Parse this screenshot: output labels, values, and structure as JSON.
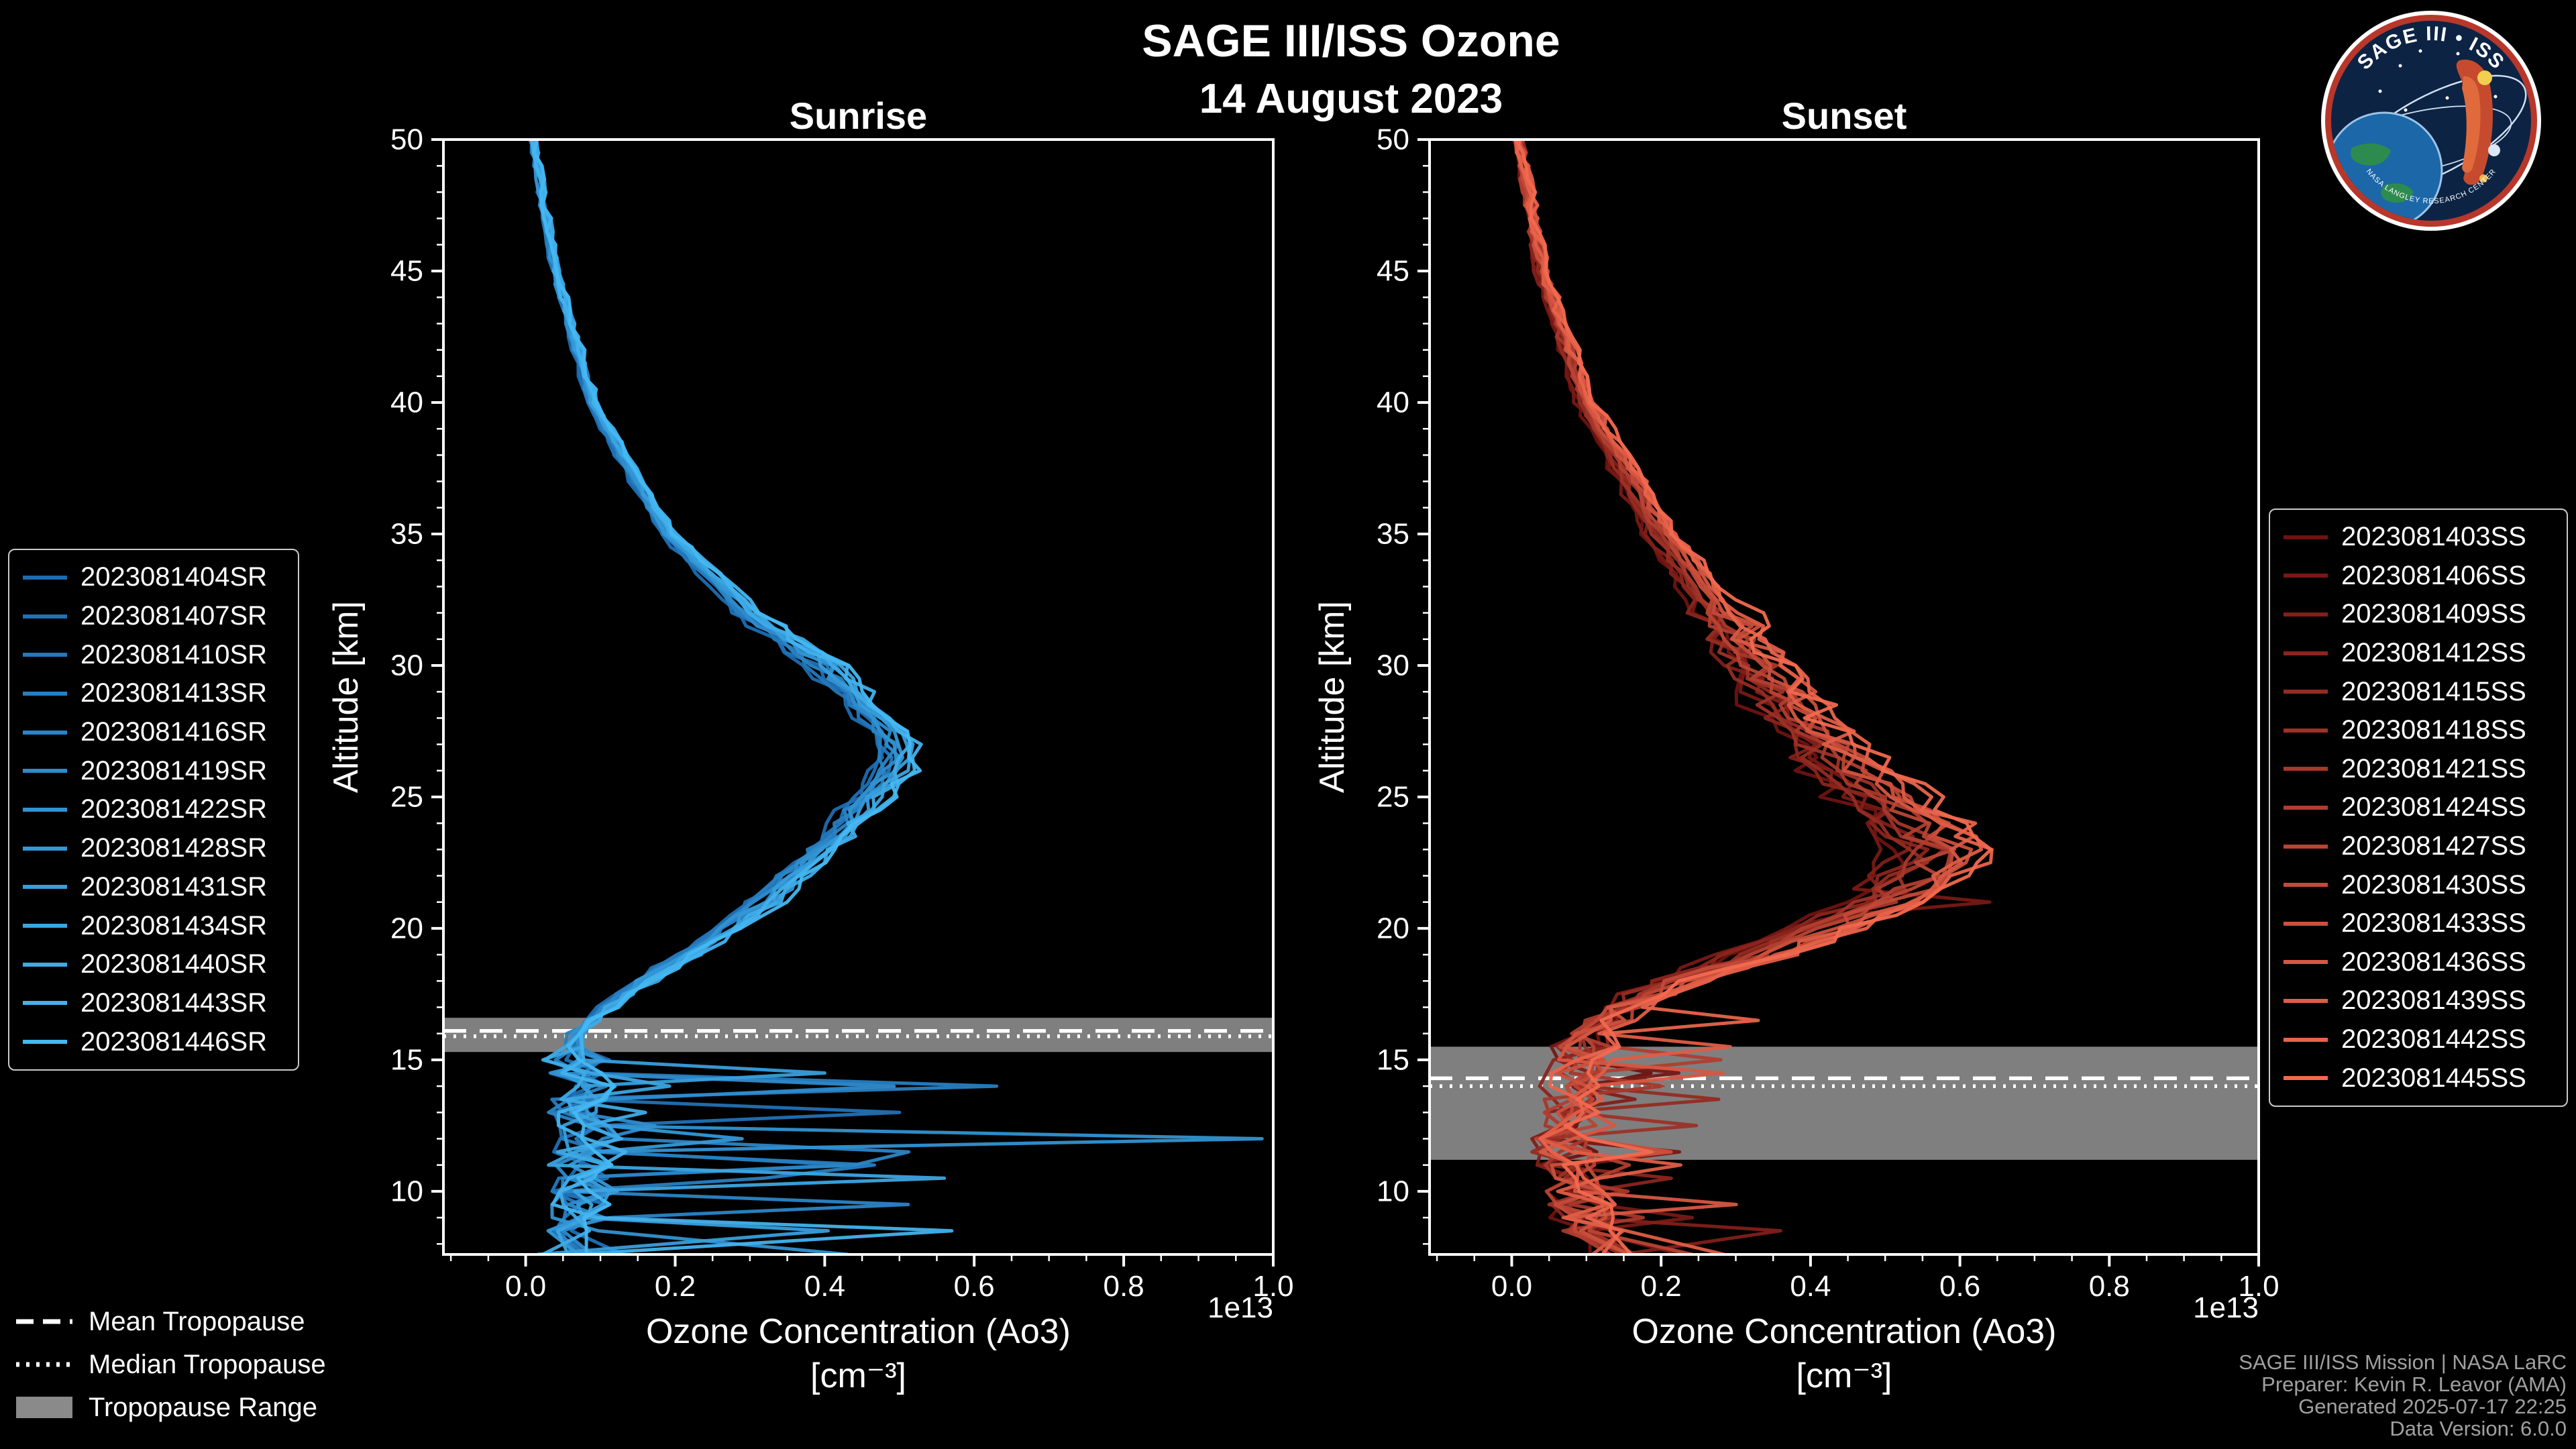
{
  "header": {
    "title": "SAGE III/ISS Ozone",
    "date": "14 August 2023"
  },
  "logo": {
    "title": "SAGE III • ISS",
    "ring_text": "NASA LANGLEY RESEARCH CENTER"
  },
  "tropopause_legend": {
    "mean_label": "Mean Tropopause",
    "median_label": "Median Tropopause",
    "range_label": "Tropopause Range"
  },
  "footer": {
    "lines": [
      "SAGE III/ISS Mission | NASA LaRC",
      "Preparer: Kevin R. Leavor (AMA)",
      "Generated 2025-07-17 22:25",
      "Data Version: 6.0.0"
    ]
  },
  "chart_data": {
    "type": "line",
    "title": "SAGE III/ISS Ozone",
    "subtitle": "14 August 2023",
    "xlabel": "Ozone Concentration (Ao3)",
    "xlabel_units": "[cm⁻³]",
    "x_offset_label": "1e13",
    "ylabel": "Altitude [km]",
    "xlim": [
      -0.11,
      1.0
    ],
    "ylim": [
      7.6,
      50
    ],
    "x_tick_values": [
      0.0,
      0.2,
      0.4,
      0.6,
      0.8,
      1.0
    ],
    "x_tick_labels": [
      "0.0",
      "0.2",
      "0.4",
      "0.6",
      "0.8",
      "1.0"
    ],
    "y_tick_values": [
      10,
      15,
      20,
      25,
      30,
      35,
      40,
      45,
      50
    ],
    "y_tick_labels": [
      "10",
      "15",
      "20",
      "25",
      "30",
      "35",
      "40",
      "45",
      "50"
    ],
    "grid": false,
    "legend_position": "outside",
    "colors": {
      "background": "#000000",
      "axis": "#ffffff",
      "tropopause_band": "#8a8a8a",
      "tropopause_line": "#ffffff"
    },
    "panels": [
      {
        "title": "Sunrise",
        "seed": 101,
        "color_start": "#1d6bb0",
        "color_end": "#45b8f2",
        "series_names": [
          "2023081404SR",
          "2023081407SR",
          "2023081410SR",
          "2023081413SR",
          "2023081416SR",
          "2023081419SR",
          "2023081422SR",
          "2023081428SR",
          "2023081431SR",
          "2023081434SR",
          "2023081440SR",
          "2023081443SR",
          "2023081446SR"
        ],
        "tropopause": {
          "mean_km": 16.1,
          "median_km": 15.9,
          "range_km": [
            15.3,
            16.6
          ]
        },
        "base_profile": {
          "altitude_km": [
            50,
            45,
            40,
            35,
            32,
            30,
            28,
            27,
            26,
            25,
            23,
            21,
            20,
            19,
            18,
            17,
            16,
            15,
            14,
            13,
            12,
            11,
            10,
            9,
            8,
            7.6
          ],
          "value_1e13": [
            0.01,
            0.04,
            0.09,
            0.19,
            0.3,
            0.4,
            0.47,
            0.5,
            0.49,
            0.46,
            0.4,
            0.32,
            0.27,
            0.22,
            0.16,
            0.11,
            0.07,
            0.06,
            0.08,
            0.07,
            0.09,
            0.07,
            0.08,
            0.07,
            0.06,
            0.05
          ]
        },
        "noise": {
          "hi": 0.006,
          "mid": 0.014,
          "low_jitter": 0.045,
          "spike_prob": 0.1,
          "spike_max": 0.5,
          "low_alt_km": 15.2,
          "fan": 0.1
        },
        "forced_spikes": [
          {
            "series": 6,
            "altitude_km": 12.0,
            "value_1e13": 0.985
          },
          {
            "series": 3,
            "altitude_km": 14.0,
            "value_1e13": 0.63
          },
          {
            "series": 9,
            "altitude_km": 10.5,
            "value_1e13": 0.56
          },
          {
            "series": 1,
            "altitude_km": 13.0,
            "value_1e13": 0.5
          },
          {
            "series": 11,
            "altitude_km": 8.5,
            "value_1e13": 0.57
          },
          {
            "series": 4,
            "altitude_km": 11.0,
            "value_1e13": 0.44
          },
          {
            "series": 8,
            "altitude_km": 14.5,
            "value_1e13": 0.4
          }
        ]
      },
      {
        "title": "Sunset",
        "seed": 202,
        "color_start": "#6e1310",
        "color_end": "#f2694f",
        "series_names": [
          "2023081403SS",
          "2023081406SS",
          "2023081409SS",
          "2023081412SS",
          "2023081415SS",
          "2023081418SS",
          "2023081421SS",
          "2023081424SS",
          "2023081427SS",
          "2023081430SS",
          "2023081433SS",
          "2023081436SS",
          "2023081439SS",
          "2023081442SS",
          "2023081445SS"
        ],
        "tropopause": {
          "mean_km": 14.3,
          "median_km": 14.0,
          "range_km": [
            11.2,
            15.5
          ]
        },
        "base_profile": {
          "altitude_km": [
            50,
            45,
            40,
            35,
            30,
            28,
            26,
            24,
            23,
            22,
            21,
            20,
            19,
            18,
            17,
            16,
            15,
            14,
            13,
            12,
            11,
            10,
            9,
            8,
            7.6
          ],
          "value_1e13": [
            0.01,
            0.04,
            0.1,
            0.2,
            0.33,
            0.38,
            0.45,
            0.54,
            0.57,
            0.55,
            0.5,
            0.42,
            0.33,
            0.22,
            0.15,
            0.11,
            0.09,
            0.08,
            0.08,
            0.07,
            0.07,
            0.08,
            0.1,
            0.12,
            0.13
          ]
        },
        "noise": {
          "hi": 0.008,
          "mid": 0.03,
          "low_jitter": 0.04,
          "spike_prob": 0.12,
          "spike_max": 0.22,
          "low_alt_km": 15.6,
          "fan": 0.22
        },
        "forced_spikes": [
          {
            "series": 2,
            "altitude_km": 8.5,
            "value_1e13": 0.36
          },
          {
            "series": 13,
            "altitude_km": 16.5,
            "value_1e13": 0.33
          },
          {
            "series": 1,
            "altitude_km": 21.0,
            "value_1e13": 0.64
          },
          {
            "series": 7,
            "altitude_km": 15.0,
            "value_1e13": 0.28
          }
        ]
      }
    ]
  }
}
